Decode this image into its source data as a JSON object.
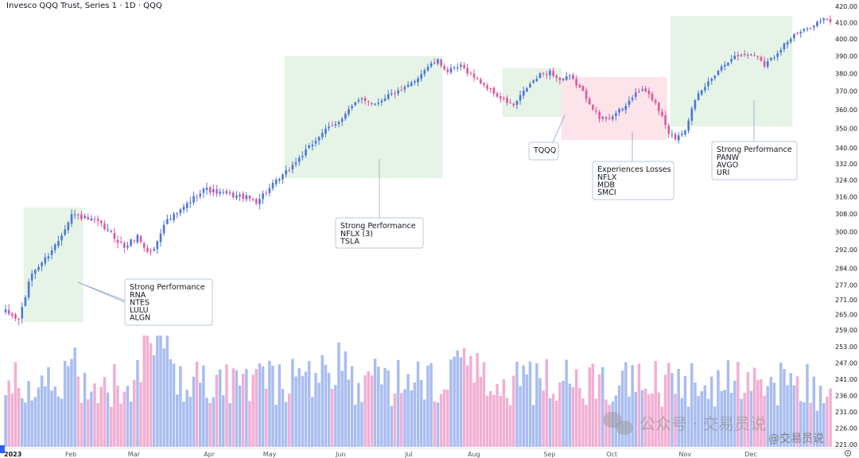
{
  "header": {
    "title": "Invesco QQQ Trust, Series 1 · 1D · QQQ"
  },
  "colors": {
    "up": "#4a78d6",
    "down": "#e0579c",
    "vol_up": "#a9bdf0",
    "vol_down": "#f2afd3",
    "green_zone": "#e6f4e7",
    "red_zone": "#fde3ea",
    "box_border": "#b8c8dc"
  },
  "chart_data": {
    "type": "candlestick",
    "title": "Invesco QQQ Trust, Series 1 · 1D · QQQ",
    "y_axis": {
      "scale": "log",
      "ticks": [
        420.0,
        410.0,
        400.0,
        390.0,
        380.0,
        370.0,
        360.0,
        350.0,
        340.0,
        332.0,
        324.0,
        316.0,
        308.0,
        300.0,
        292.0,
        284.0,
        277.0,
        271.0,
        265.0,
        259.0,
        253.0,
        247.0,
        241.0,
        236.0,
        231.0,
        226.0,
        221.0
      ]
    },
    "x_axis": {
      "ticks": [
        {
          "label": "2023",
          "bold": true,
          "bar": 0
        },
        {
          "label": "Feb",
          "bold": false,
          "bar": 20
        },
        {
          "label": "Mar",
          "bold": false,
          "bar": 39
        },
        {
          "label": "Apr",
          "bold": false,
          "bar": 62
        },
        {
          "label": "May",
          "bold": false,
          "bar": 80
        },
        {
          "label": "Jun",
          "bold": false,
          "bar": 102
        },
        {
          "label": "Jul",
          "bold": false,
          "bar": 123
        },
        {
          "label": "Aug",
          "bold": false,
          "bar": 142
        },
        {
          "label": "Sep",
          "bold": false,
          "bar": 165
        },
        {
          "label": "Oct",
          "bold": false,
          "bar": 184
        },
        {
          "label": "Nov",
          "bold": false,
          "bar": 206
        },
        {
          "label": "Dec",
          "bold": false,
          "bar": 226
        }
      ]
    },
    "anchors": [
      [
        0,
        266
      ],
      [
        4,
        263
      ],
      [
        8,
        282
      ],
      [
        12,
        288
      ],
      [
        16,
        296
      ],
      [
        20,
        308
      ],
      [
        24,
        306
      ],
      [
        28,
        304
      ],
      [
        32,
        299
      ],
      [
        36,
        293
      ],
      [
        40,
        298
      ],
      [
        43,
        291
      ],
      [
        45,
        292
      ],
      [
        48,
        304
      ],
      [
        52,
        308
      ],
      [
        56,
        314
      ],
      [
        60,
        320
      ],
      [
        64,
        318
      ],
      [
        68,
        317
      ],
      [
        72,
        316
      ],
      [
        76,
        314
      ],
      [
        80,
        320
      ],
      [
        84,
        326
      ],
      [
        88,
        333
      ],
      [
        92,
        340
      ],
      [
        96,
        348
      ],
      [
        100,
        352
      ],
      [
        104,
        360
      ],
      [
        108,
        366
      ],
      [
        112,
        363
      ],
      [
        116,
        368
      ],
      [
        120,
        370
      ],
      [
        124,
        376
      ],
      [
        128,
        384
      ],
      [
        131,
        387
      ],
      [
        134,
        381
      ],
      [
        138,
        384
      ],
      [
        142,
        378
      ],
      [
        146,
        372
      ],
      [
        150,
        366
      ],
      [
        154,
        362
      ],
      [
        158,
        372
      ],
      [
        162,
        379
      ],
      [
        165,
        381
      ],
      [
        168,
        376
      ],
      [
        171,
        378
      ],
      [
        174,
        372
      ],
      [
        177,
        364
      ],
      [
        180,
        355
      ],
      [
        183,
        356
      ],
      [
        187,
        360
      ],
      [
        190,
        367
      ],
      [
        193,
        371
      ],
      [
        196,
        366
      ],
      [
        199,
        357
      ],
      [
        201,
        348
      ],
      [
        203,
        345
      ],
      [
        206,
        350
      ],
      [
        208,
        360
      ],
      [
        210,
        368
      ],
      [
        213,
        375
      ],
      [
        216,
        382
      ],
      [
        220,
        389
      ],
      [
        224,
        391
      ],
      [
        228,
        390
      ],
      [
        230,
        385
      ],
      [
        233,
        390
      ],
      [
        236,
        397
      ],
      [
        239,
        402
      ],
      [
        242,
        405
      ],
      [
        245,
        409
      ],
      [
        248,
        412
      ],
      [
        250,
        410
      ]
    ],
    "bar_count": 251,
    "zones": [
      {
        "type": "green",
        "from_bar": 6,
        "to_bar": 23,
        "top": 311,
        "bottom": 262
      },
      {
        "type": "green",
        "from_bar": 85,
        "to_bar": 132,
        "top": 390,
        "bottom": 325
      },
      {
        "type": "green",
        "from_bar": 151,
        "to_bar": 168,
        "top": 383,
        "bottom": 356
      },
      {
        "type": "red",
        "from_bar": 169,
        "to_bar": 200,
        "top": 378,
        "bottom": 344
      },
      {
        "type": "green",
        "from_bar": 202,
        "to_bar": 238,
        "top": 414,
        "bottom": 351
      }
    ],
    "annotations": [
      {
        "id": "note1",
        "heading": "Strong Performance",
        "lines": [
          "RNA",
          "NTES",
          "LULU",
          "ALGN"
        ]
      },
      {
        "id": "note2",
        "heading": "Strong Performance",
        "lines": [
          "NFLX (3)",
          "TSLA"
        ]
      },
      {
        "id": "note3",
        "heading": "TQQQ",
        "lines": []
      },
      {
        "id": "note4",
        "heading": "Experiences Losses",
        "lines": [
          "NFLX",
          "MDB",
          "SMCI"
        ]
      },
      {
        "id": "note5",
        "heading": "Strong Performance",
        "lines": [
          "PANW",
          "AVGO",
          "URI"
        ]
      }
    ]
  },
  "watermark": {
    "main": "公众号 · 交易员说",
    "sub": "@交易员说"
  }
}
